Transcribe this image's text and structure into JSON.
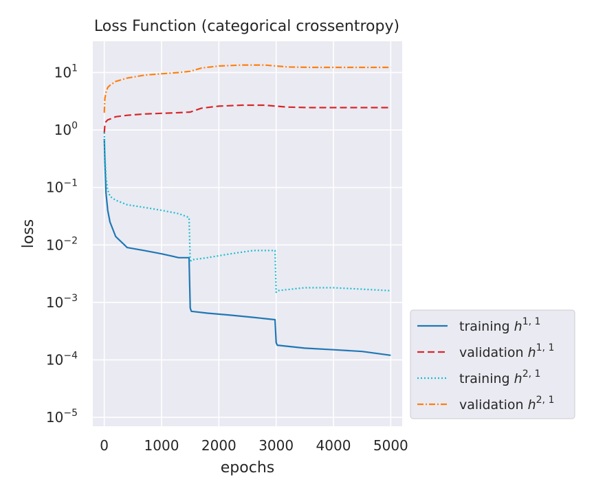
{
  "chart_data": {
    "type": "line",
    "title": "Loss Function (categorical crossentropy)",
    "xlabel": "epochs",
    "ylabel": "loss",
    "xlim": [
      -200,
      5200
    ],
    "ylim": [
      7e-06,
      35
    ],
    "yscale": "log",
    "grid": true,
    "background": "#eaeaf2",
    "legend_position": "outside-right-bottom",
    "x_ticks": [
      {
        "value": 0,
        "label": "0"
      },
      {
        "value": 1000,
        "label": "1000"
      },
      {
        "value": 2000,
        "label": "2000"
      },
      {
        "value": 3000,
        "label": "3000"
      },
      {
        "value": 4000,
        "label": "4000"
      },
      {
        "value": 5000,
        "label": "5000"
      }
    ],
    "y_ticks": [
      {
        "value": 10,
        "base": "10",
        "exp": "1"
      },
      {
        "value": 1,
        "base": "10",
        "exp": "0"
      },
      {
        "value": 0.1,
        "base": "10",
        "exp": "−1"
      },
      {
        "value": 0.01,
        "base": "10",
        "exp": "−2"
      },
      {
        "value": 0.001,
        "base": "10",
        "exp": "−3"
      },
      {
        "value": 0.0001,
        "base": "10",
        "exp": "−4"
      },
      {
        "value": 1e-05,
        "base": "10",
        "exp": "−5"
      }
    ],
    "series": [
      {
        "name": "training h^{1,1}",
        "label_text": "training ",
        "label_var": "h",
        "label_sup": "1, 1",
        "color": "#1f77b4",
        "dash": "solid",
        "x": [
          0,
          10,
          30,
          60,
          100,
          200,
          400,
          700,
          1000,
          1300,
          1480,
          1500,
          1520,
          1800,
          2200,
          2600,
          2980,
          3000,
          3020,
          3500,
          4000,
          4500,
          5000
        ],
        "y": [
          0.7,
          0.3,
          0.08,
          0.04,
          0.025,
          0.014,
          0.009,
          0.008,
          0.007,
          0.006,
          0.006,
          0.0008,
          0.0007,
          0.00065,
          0.0006,
          0.00055,
          0.0005,
          0.0002,
          0.00018,
          0.00016,
          0.00015,
          0.00014,
          0.00012
        ]
      },
      {
        "name": "validation h^{1,1}",
        "label_text": "validation ",
        "label_var": "h",
        "label_sup": "1, 1",
        "color": "#d62728",
        "dash": "dashed",
        "x": [
          0,
          10,
          30,
          60,
          100,
          200,
          400,
          700,
          1000,
          1300,
          1500,
          1700,
          2000,
          2400,
          2800,
          3000,
          3200,
          3600,
          4000,
          4500,
          5000
        ],
        "y": [
          0.9,
          1.2,
          1.4,
          1.5,
          1.55,
          1.7,
          1.8,
          1.9,
          1.95,
          2.0,
          2.05,
          2.4,
          2.6,
          2.7,
          2.7,
          2.6,
          2.5,
          2.45,
          2.45,
          2.45,
          2.45
        ]
      },
      {
        "name": "training h^{2,1}",
        "label_text": "training ",
        "label_var": "h",
        "label_sup": "2, 1",
        "color": "#17becf",
        "dash": "dotted",
        "x": [
          0,
          10,
          30,
          60,
          100,
          200,
          400,
          700,
          1000,
          1300,
          1480,
          1500,
          1520,
          1800,
          2200,
          2600,
          2980,
          3000,
          3020,
          3500,
          4000,
          4500,
          5000
        ],
        "y": [
          0.9,
          0.4,
          0.15,
          0.09,
          0.07,
          0.06,
          0.05,
          0.045,
          0.04,
          0.035,
          0.03,
          0.005,
          0.0055,
          0.006,
          0.007,
          0.008,
          0.008,
          0.0015,
          0.0016,
          0.0018,
          0.0018,
          0.0017,
          0.0016
        ]
      },
      {
        "name": "validation h^{2,1}",
        "label_text": "validation ",
        "label_var": "h",
        "label_sup": "2, 1",
        "color": "#ff7f0e",
        "dash": "dashdot",
        "x": [
          0,
          10,
          30,
          60,
          100,
          200,
          400,
          700,
          1000,
          1300,
          1500,
          1700,
          2000,
          2400,
          2800,
          3000,
          3200,
          3600,
          4000,
          4500,
          5000
        ],
        "y": [
          2.0,
          3.5,
          4.5,
          5.5,
          6.0,
          7.0,
          8.0,
          9.0,
          9.5,
          10.0,
          10.5,
          12.0,
          13.0,
          13.5,
          13.5,
          13.0,
          12.5,
          12.3,
          12.3,
          12.3,
          12.3
        ]
      }
    ]
  }
}
